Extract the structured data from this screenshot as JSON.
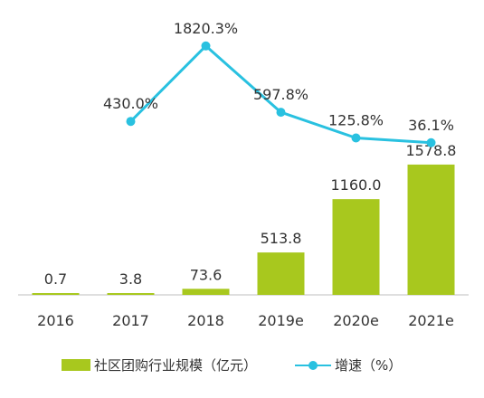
{
  "chart_data": {
    "type": "bar",
    "categories": [
      "2016",
      "2017",
      "2018",
      "2019e",
      "2020e",
      "2021e"
    ],
    "series": [
      {
        "name": "社区团购行业规模（亿元）",
        "type": "bar",
        "values": [
          0.7,
          3.8,
          73.6,
          513.8,
          1160.0,
          1578.8
        ],
        "labels": [
          "0.7",
          "3.8",
          "73.6",
          "513.8",
          "1160.0",
          "1578.8"
        ],
        "color": "#a8c81e"
      },
      {
        "name": "增速（%）",
        "type": "line",
        "values": [
          null,
          430.0,
          1820.3,
          597.8,
          125.8,
          36.1
        ],
        "labels": [
          "",
          "430.0%",
          "1820.3%",
          "597.8%",
          "125.8%",
          "36.1%"
        ],
        "color": "#29c1e0"
      }
    ],
    "ylim_bar": [
      0,
      1600
    ],
    "ylim_line": [
      0,
      2000
    ],
    "grid": false,
    "legend_position": "bottom"
  }
}
